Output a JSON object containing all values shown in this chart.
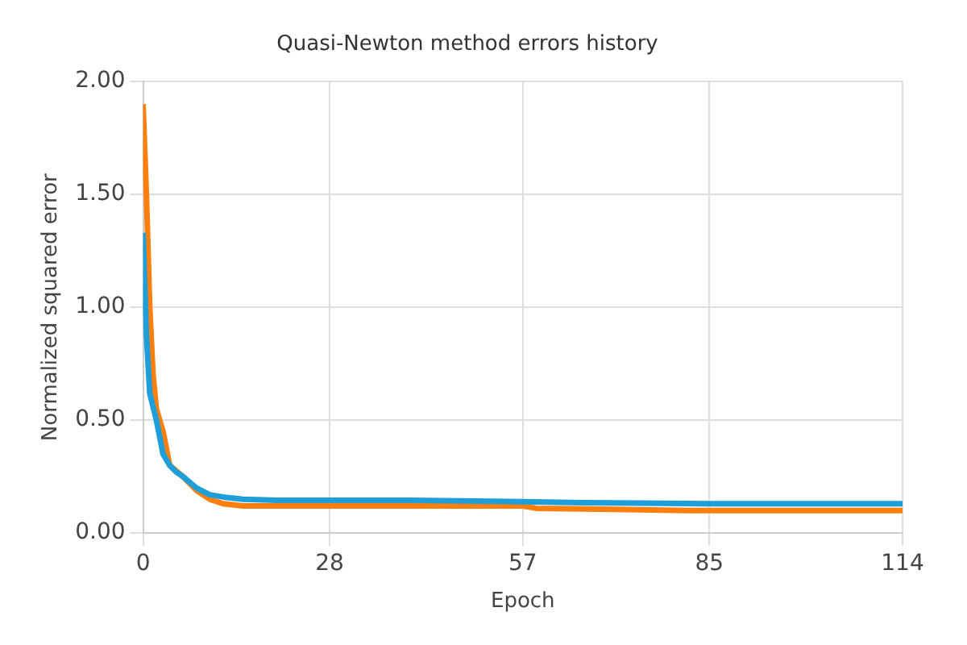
{
  "chart_data": {
    "type": "line",
    "title": "Quasi-Newton method errors history",
    "xlabel": "Epoch",
    "ylabel": "Normalized squared error",
    "xlim": [
      0,
      114
    ],
    "xticks": [
      0,
      28,
      57,
      85,
      114
    ],
    "ylim": [
      0,
      2
    ],
    "yticks": [
      {
        "value": 0,
        "label": "0.00"
      },
      {
        "value": 0.5,
        "label": "0.50"
      },
      {
        "value": 1,
        "label": "1.00"
      },
      {
        "value": 1.5,
        "label": "1.50"
      },
      {
        "value": 2,
        "label": "2.00"
      }
    ],
    "grid": true,
    "legend": false,
    "marker": "none",
    "line_style": "solid",
    "series": [
      {
        "color": "#1f9fd9",
        "x": [
          0,
          0.5,
          1,
          2,
          3,
          4,
          5,
          6,
          8,
          10,
          12,
          15,
          20,
          40,
          55,
          66,
          85,
          114
        ],
        "values": [
          1.33,
          0.88,
          0.62,
          0.5,
          0.35,
          0.3,
          0.27,
          0.25,
          0.2,
          0.17,
          0.16,
          0.15,
          0.145,
          0.145,
          0.14,
          0.135,
          0.13,
          0.13
        ]
      },
      {
        "color": "#ff7f0e",
        "x": [
          0,
          0.5,
          1,
          1.5,
          2,
          3,
          4,
          6,
          8,
          10,
          12,
          15,
          30,
          57,
          59,
          82,
          114
        ],
        "values": [
          1.9,
          1.5,
          1.0,
          0.7,
          0.55,
          0.45,
          0.3,
          0.25,
          0.19,
          0.15,
          0.13,
          0.12,
          0.12,
          0.12,
          0.11,
          0.1,
          0.1
        ]
      }
    ]
  }
}
